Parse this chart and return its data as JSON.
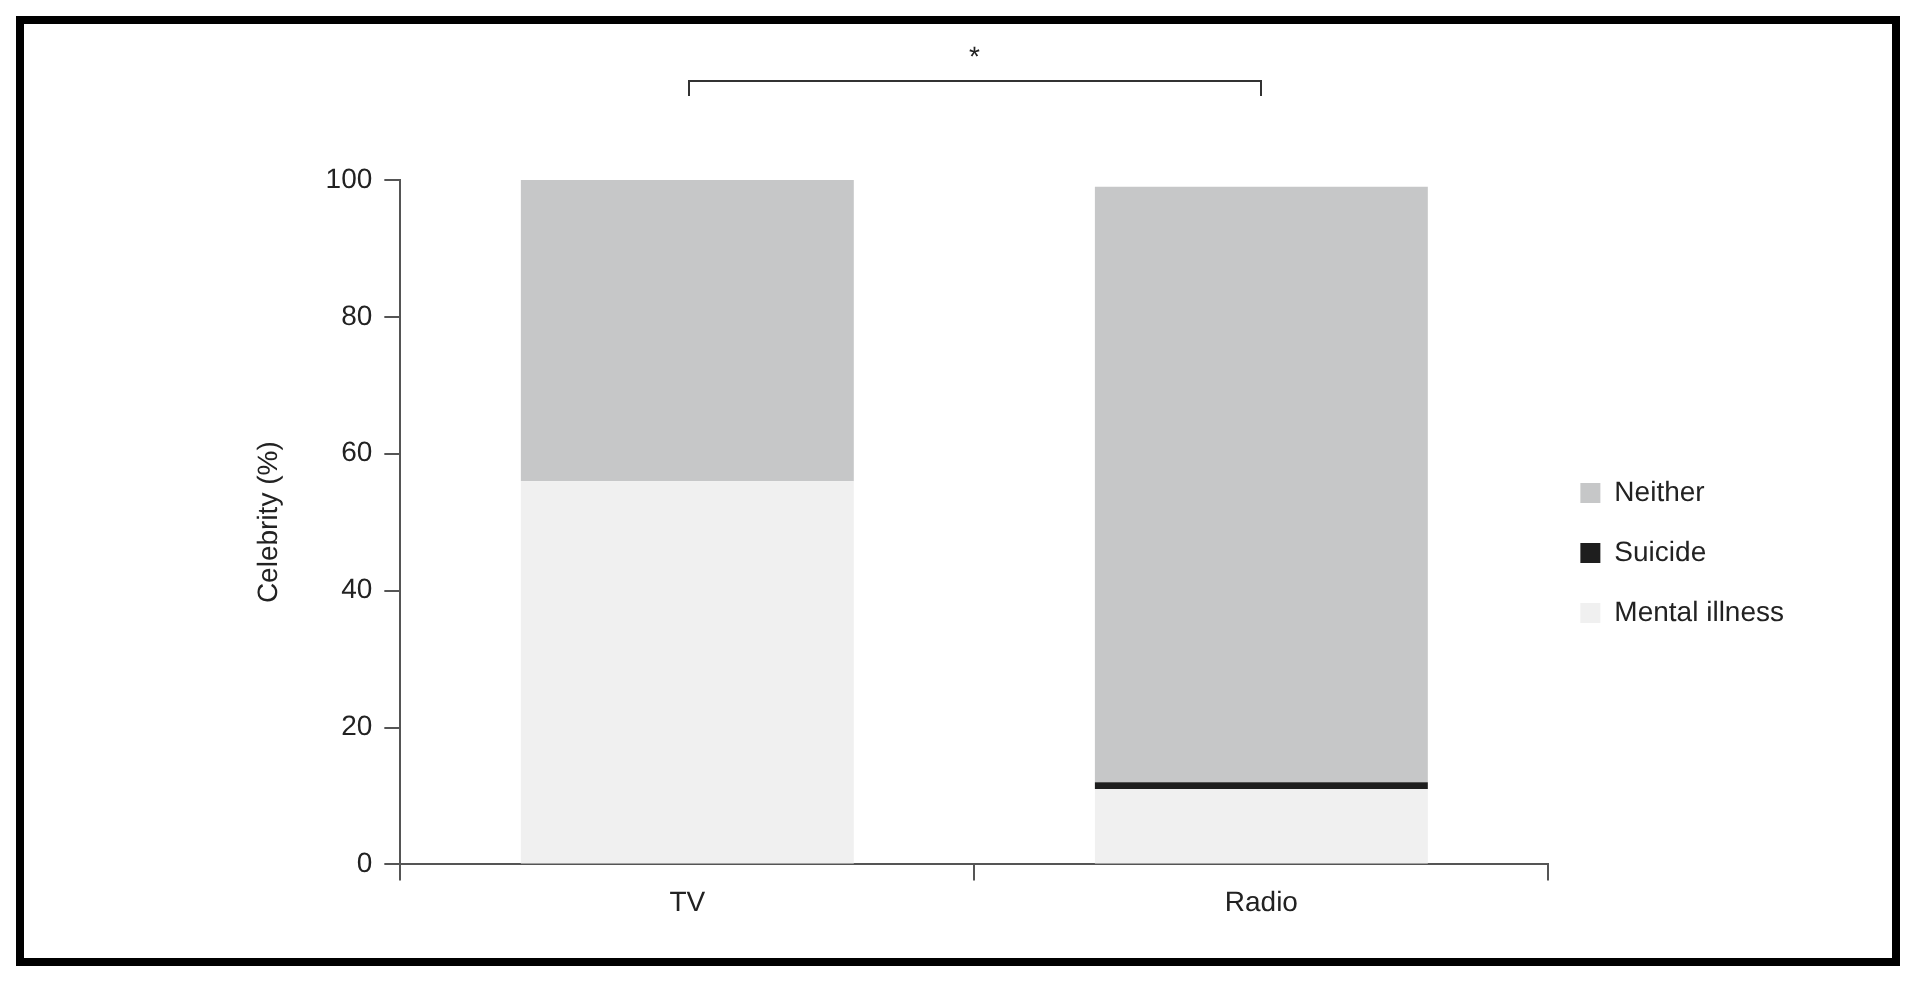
{
  "chart_data": {
    "type": "bar",
    "stacked": true,
    "ylabel": "Celebrity (%)",
    "categories": [
      "TV",
      "Radio"
    ],
    "series": [
      {
        "name": "Mental illness",
        "color": "#f0f0f0",
        "values": [
          56,
          11
        ]
      },
      {
        "name": "Suicide",
        "color": "#1e1e1e",
        "values": [
          0,
          1
        ]
      },
      {
        "name": "Neither",
        "color": "#c6c7c8",
        "values": [
          44,
          87
        ]
      }
    ],
    "ylim": [
      0,
      100
    ],
    "yticks": [
      0,
      20,
      40,
      60,
      80,
      100
    ],
    "grid": false,
    "legend": "right",
    "annotations": [
      "*"
    ]
  }
}
